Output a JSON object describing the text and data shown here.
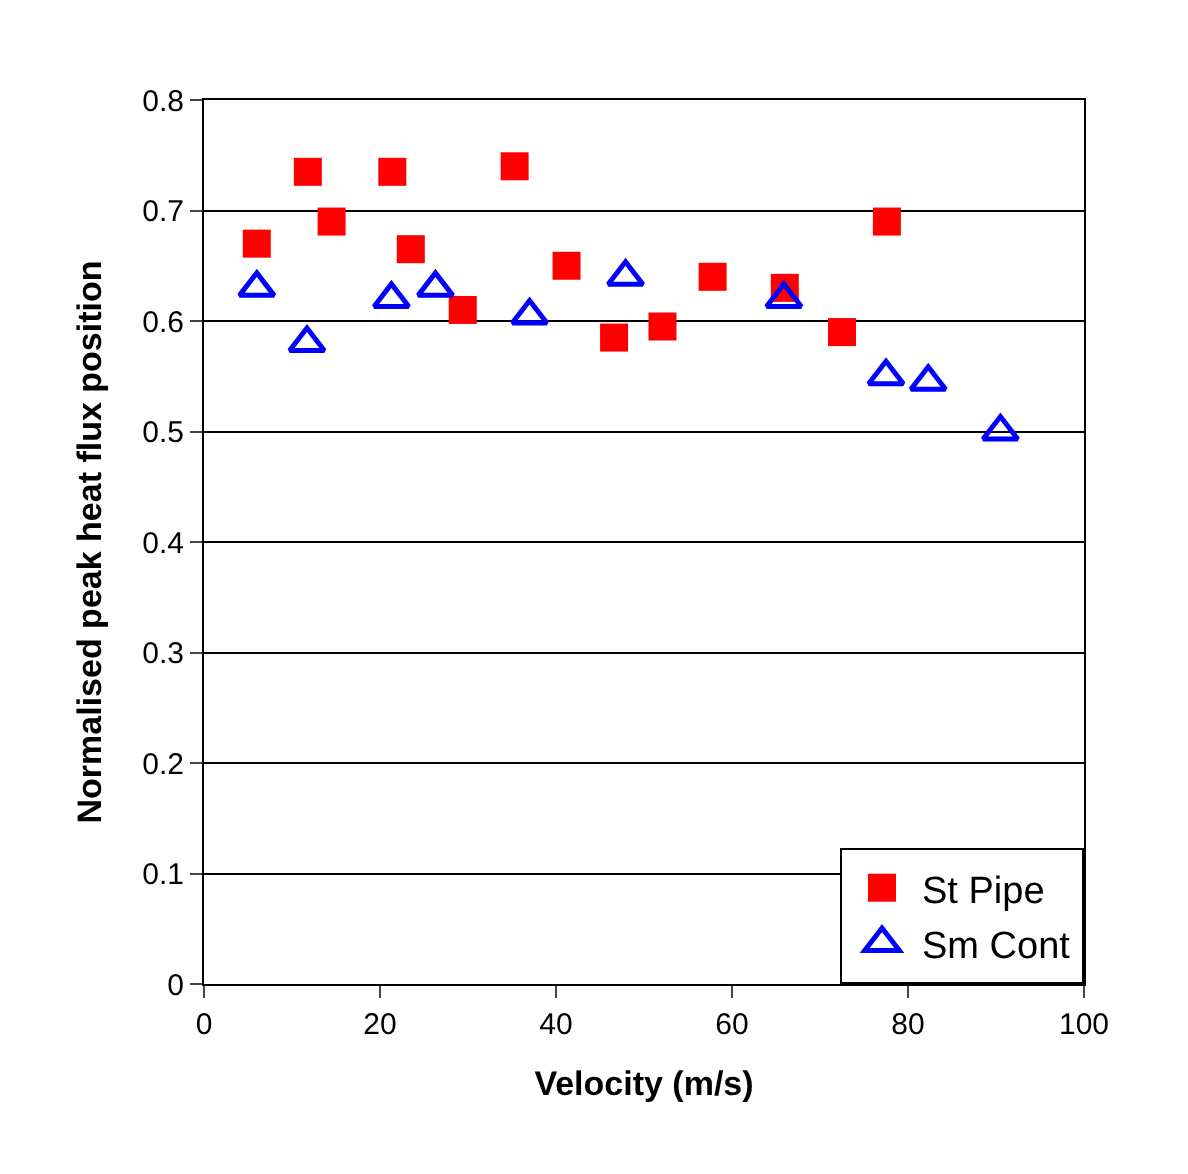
{
  "chart_data": {
    "type": "scatter",
    "xlabel": "Velocity (m/s)",
    "ylabel": "Normalised peak heat flux position",
    "xlim": [
      0,
      100
    ],
    "xticks": [
      0,
      20,
      40,
      60,
      80,
      100
    ],
    "ylim": [
      0,
      0.8
    ],
    "yticks": [
      0,
      0.1,
      0.2,
      0.3,
      0.4,
      0.5,
      0.6,
      0.7,
      0.8
    ],
    "grid": "y",
    "legend": "bottom right",
    "series": [
      {
        "name": "St Pipe",
        "color": "#ff0000",
        "marker": "square",
        "x": [
          6.0,
          11.8,
          14.5,
          21.4,
          23.5,
          29.4,
          35.3,
          41.2,
          46.6,
          52.1,
          57.8,
          66.0,
          72.5,
          77.6
        ],
        "values": [
          0.67,
          0.735,
          0.69,
          0.735,
          0.665,
          0.61,
          0.74,
          0.65,
          0.585,
          0.595,
          0.64,
          0.63,
          0.59,
          0.69
        ]
      },
      {
        "name": "Sm Cont",
        "color": "#0000ff",
        "marker": "triangle",
        "x": [
          6.0,
          11.7,
          21.3,
          26.3,
          37.0,
          47.9,
          65.9,
          77.5,
          82.3,
          90.5
        ],
        "values": [
          0.63,
          0.58,
          0.62,
          0.63,
          0.605,
          0.64,
          0.62,
          0.55,
          0.545,
          0.5
        ]
      }
    ]
  }
}
